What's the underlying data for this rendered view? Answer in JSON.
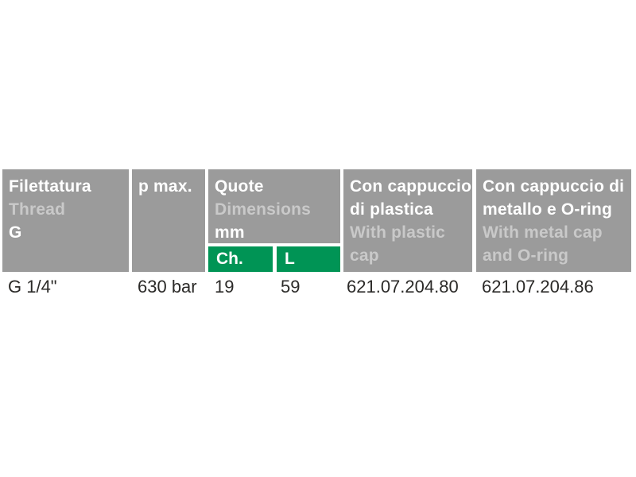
{
  "colors": {
    "page_bg": "#ffffff",
    "header_bg": "#9b9b9b",
    "header_text_primary": "#ffffff",
    "header_text_secondary": "#c9c9c9",
    "subheader_bg": "#009455",
    "subheader_text": "#ffffff",
    "body_text": "#2b2a28"
  },
  "table": {
    "header": {
      "thread": {
        "it_line1": "Filettatura",
        "en_line1": "Thread",
        "it_line2": "G"
      },
      "p_max": {
        "it_line1": "p max."
      },
      "dimensions": {
        "it_line1": "Quote",
        "en_line1": "Dimensions",
        "it_line2": "mm",
        "sub_ch": "Ch.",
        "sub_l": "L"
      },
      "plastic_cap": {
        "it_line1": "Con cappuccio",
        "it_line2": "di plastica",
        "en_line1": "With plastic",
        "en_line2": "cap"
      },
      "metal_cap": {
        "it_line1": "Con cappuccio di",
        "it_line2": "metallo e O-ring",
        "en_line1": "With metal cap",
        "en_line2": "and O-ring"
      }
    },
    "rows": [
      {
        "thread": "G 1/4\"",
        "p_max": "630 bar",
        "ch": "19",
        "l": "59",
        "plastic_cap_code": "621.07.204.80",
        "metal_cap_code": "621.07.204.86"
      }
    ]
  }
}
